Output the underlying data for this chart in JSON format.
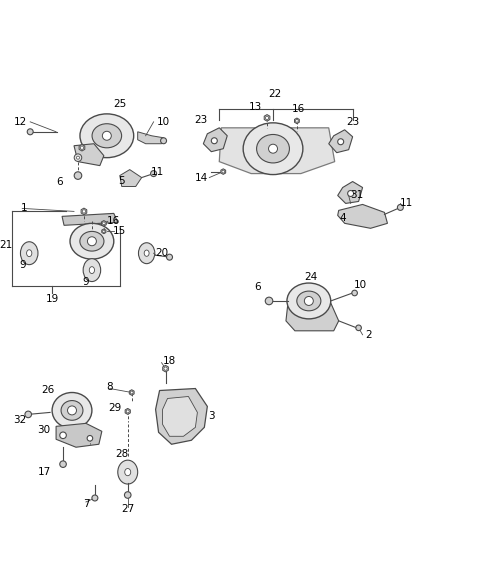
{
  "bg_color": "#ffffff",
  "line_color": "#4a4a4a",
  "label_color": "#000000",
  "fig_width": 4.8,
  "fig_height": 5.83,
  "dpi": 100
}
